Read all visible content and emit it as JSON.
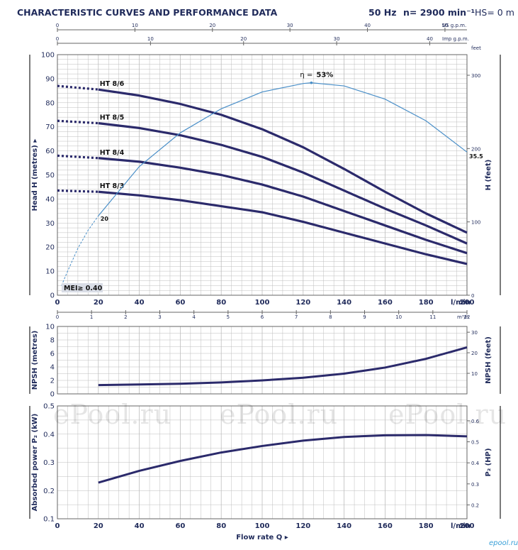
{
  "header": {
    "title": "CHARACTERISTIC CURVES AND PERFORMANCE DATA",
    "frequency": "50 Hz",
    "speed": "n= 2900 min⁻¹",
    "hs": "HS= 0 m"
  },
  "watermark": "ePool.ru",
  "logo_text": "epool.ru",
  "colors": {
    "curve": "#2b2a6b",
    "efficiency": "#4a8fc8",
    "grid": "#bdbdbd",
    "text": "#1f2a5a"
  },
  "chart_data": [
    {
      "type": "line",
      "name": "head",
      "x_unit": "l/min",
      "xlim": [
        0,
        200
      ],
      "xticks": [
        0,
        20,
        40,
        60,
        80,
        100,
        120,
        140,
        160,
        180,
        200
      ],
      "ylabel": "Head  H  (metres)",
      "ylim": [
        0,
        100
      ],
      "yticks": [
        0,
        10,
        20,
        30,
        40,
        50,
        60,
        70,
        80,
        90,
        100
      ],
      "y2label": "H  (feet)",
      "y2ticks": [
        0,
        100,
        200,
        300
      ],
      "y2_unit": "feet",
      "top_axes": [
        {
          "unit": "US g.p.m.",
          "ticks": [
            0,
            10,
            20,
            30,
            40,
            50
          ],
          "per_lpm": 0.2642
        },
        {
          "unit": "Imp g.p.m.",
          "ticks": [
            0,
            10,
            20,
            30,
            40
          ],
          "per_lpm": 0.22
        }
      ],
      "bottom_axis2": {
        "unit": "m³/h",
        "ticks": [
          0,
          1,
          2,
          3,
          4,
          5,
          6,
          7,
          8,
          9,
          10,
          11,
          12
        ],
        "per_lpm": 0.06
      },
      "series": [
        {
          "name": "HT 8/6",
          "x": [
            0,
            20,
            40,
            60,
            80,
            100,
            120,
            140,
            160,
            180,
            200
          ],
          "y": [
            87,
            85.5,
            83,
            79.5,
            75,
            69,
            61.5,
            52.5,
            43,
            34,
            26
          ],
          "dashed_to_x": 20
        },
        {
          "name": "HT 8/5",
          "x": [
            0,
            20,
            40,
            60,
            80,
            100,
            120,
            140,
            160,
            180,
            200
          ],
          "y": [
            72.5,
            71.5,
            69.5,
            66.5,
            62.5,
            57.5,
            51,
            43.5,
            36,
            29,
            21.5
          ],
          "dashed_to_x": 20
        },
        {
          "name": "HT 8/4",
          "x": [
            0,
            20,
            40,
            60,
            80,
            100,
            120,
            140,
            160,
            180,
            200
          ],
          "y": [
            58,
            57,
            55.5,
            53,
            50,
            46,
            41,
            35,
            29,
            23,
            17.5
          ],
          "dashed_to_x": 20
        },
        {
          "name": "HT 8/3",
          "x": [
            0,
            20,
            40,
            60,
            80,
            100,
            120,
            140,
            160,
            180,
            200
          ],
          "y": [
            43.5,
            43,
            41.5,
            39.5,
            37,
            34.5,
            30.5,
            26,
            21.5,
            17,
            13
          ],
          "dashed_to_x": 20
        }
      ],
      "efficiency": {
        "label_prefix": "η = ",
        "label_value": "53%",
        "x": [
          20,
          40,
          60,
          80,
          100,
          120,
          124,
          140,
          160,
          180,
          200
        ],
        "y": [
          33,
          53.5,
          67.5,
          77.5,
          84.5,
          88,
          88.3,
          87,
          81.5,
          72.5,
          59.5
        ],
        "dashed_x": [
          2,
          5,
          10,
          15,
          20
        ],
        "dashed_y": [
          4,
          10,
          19.5,
          27,
          33
        ],
        "start_label": "20",
        "end_label": "35.5"
      },
      "mei_label": "MEI≥ 0.40"
    },
    {
      "type": "line",
      "name": "npsh",
      "xlim": [
        0,
        200
      ],
      "xticks": [
        0,
        20,
        40,
        60,
        80,
        100,
        120,
        140,
        160,
        180,
        200
      ],
      "ylabel": "NPSH  (metres)",
      "ylim": [
        0,
        10
      ],
      "yticks": [
        0,
        2,
        4,
        6,
        8,
        10
      ],
      "y2label": "NPSH  (feet)",
      "y2ticks": [
        10,
        20,
        30
      ],
      "series": [
        {
          "name": "NPSH",
          "x": [
            20,
            40,
            60,
            80,
            100,
            120,
            140,
            160,
            180,
            200
          ],
          "y": [
            1.3,
            1.4,
            1.5,
            1.7,
            2.0,
            2.4,
            3.0,
            3.9,
            5.2,
            6.9
          ]
        }
      ]
    },
    {
      "type": "line",
      "name": "power",
      "xlim": [
        0,
        200
      ],
      "xticks": [
        0,
        20,
        40,
        60,
        80,
        100,
        120,
        140,
        160,
        180,
        200
      ],
      "xlabel": "Flow rate  Q",
      "x_unit": "l/min",
      "ylabel": "Absorbed power  P₂  (kW)",
      "ylim": [
        0.1,
        0.5
      ],
      "yticks": [
        0.1,
        0.2,
        0.3,
        0.4,
        0.5
      ],
      "y2label": "P₂  (HP)",
      "y2ticks": [
        0.2,
        0.3,
        0.4,
        0.5,
        0.6
      ],
      "series": [
        {
          "name": "P2",
          "x": [
            20,
            40,
            60,
            80,
            100,
            120,
            140,
            160,
            180,
            200
          ],
          "y": [
            0.228,
            0.27,
            0.305,
            0.335,
            0.358,
            0.377,
            0.39,
            0.396,
            0.397,
            0.392
          ]
        }
      ]
    }
  ]
}
